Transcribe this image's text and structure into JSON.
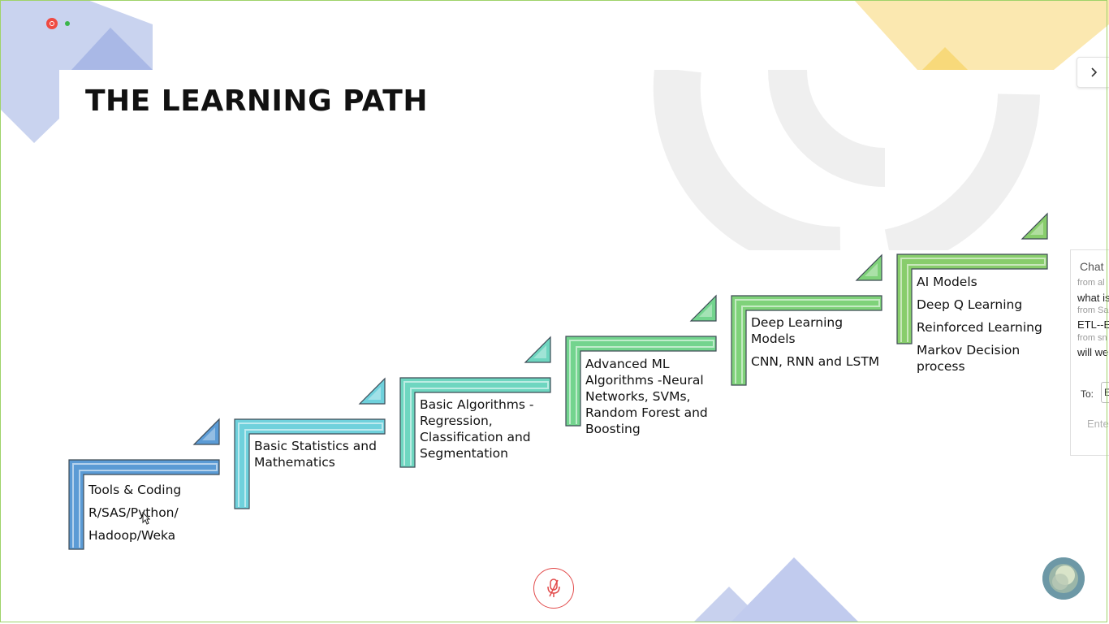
{
  "slide": {
    "title": "THE LEARNING PATH",
    "steps": [
      {
        "name": "tools-coding",
        "lines": [
          "Tools & Coding",
          "R/SAS/Python/",
          "Hadoop/Weka"
        ]
      },
      {
        "name": "basic-stats",
        "lines": [
          "Basic Statistics and",
          "Mathematics"
        ]
      },
      {
        "name": "basic-algos",
        "lines": [
          "Basic Algorithms -",
          "Regression,",
          "Classification and",
          "Segmentation"
        ]
      },
      {
        "name": "advanced-ml",
        "lines": [
          "Advanced ML",
          "Algorithms -Neural",
          "Networks, SVMs,",
          "Random Forest and",
          "Boosting"
        ]
      },
      {
        "name": "deep-learning",
        "lines": [
          "Deep Learning",
          "Models",
          "CNN, RNN and LSTM"
        ]
      },
      {
        "name": "ai-models",
        "lines": [
          "AI Models",
          "Deep Q Learning",
          "Reinforced Learning",
          "Markov Decision",
          "process"
        ]
      }
    ]
  },
  "chat": {
    "title": "Chat",
    "messages": [
      {
        "from": "from al",
        "text": "what is"
      },
      {
        "from": "from Sa",
        "text": "ETL--E"
      },
      {
        "from": "from sn",
        "text": "will we"
      }
    ],
    "to_label": "To:",
    "to_value": "E",
    "input_placeholder": "Ente"
  },
  "icons": {
    "record": "record-indicator-icon",
    "collapse": "chevron-right-icon",
    "mic": "microphone-muted-icon",
    "avatar": "participant-avatar-icon",
    "cursor": "mouse-pointer-icon"
  },
  "colors": {
    "step1": "#5b9bd5",
    "step2": "#6fd1dc",
    "step3": "#6ed6c0",
    "step4": "#73d48e",
    "step5": "#7fd27a",
    "step6": "#88cd6c",
    "record": "#ef4a42",
    "mic": "#e24b4b"
  }
}
